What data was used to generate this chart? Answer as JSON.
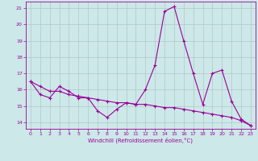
{
  "xlabel": "Windchill (Refroidissement éolien,°C)",
  "background_color": "#cde8e8",
  "grid_color": "#b0c8c8",
  "line_color": "#990099",
  "ylim": [
    13.6,
    21.4
  ],
  "xlim": [
    -0.5,
    23.5
  ],
  "yticks": [
    14,
    15,
    16,
    17,
    18,
    19,
    20,
    21
  ],
  "xticks": [
    0,
    1,
    2,
    3,
    4,
    5,
    6,
    7,
    8,
    9,
    10,
    11,
    12,
    13,
    14,
    15,
    16,
    17,
    18,
    19,
    20,
    21,
    22,
    23
  ],
  "line1_x": [
    0,
    1,
    2,
    3,
    4,
    5,
    6,
    7,
    8,
    9,
    10,
    11,
    12,
    13,
    14,
    15,
    16,
    17,
    18,
    19,
    20,
    21,
    22,
    23
  ],
  "line1_y": [
    16.5,
    15.7,
    15.5,
    16.2,
    15.9,
    15.5,
    15.5,
    14.7,
    14.3,
    14.8,
    15.2,
    15.1,
    16.0,
    17.5,
    20.8,
    21.1,
    19.0,
    17.0,
    15.1,
    17.0,
    17.2,
    15.3,
    14.2,
    13.8
  ],
  "line2_x": [
    0,
    1,
    2,
    3,
    4,
    5,
    6,
    7,
    8,
    9,
    10,
    11,
    12,
    13,
    14,
    15,
    16,
    17,
    18,
    19,
    20,
    21,
    22,
    23
  ],
  "line2_y": [
    16.5,
    16.2,
    15.9,
    15.9,
    15.7,
    15.6,
    15.5,
    15.4,
    15.3,
    15.2,
    15.2,
    15.1,
    15.1,
    15.0,
    14.9,
    14.9,
    14.8,
    14.7,
    14.6,
    14.5,
    14.4,
    14.3,
    14.1,
    13.8
  ]
}
